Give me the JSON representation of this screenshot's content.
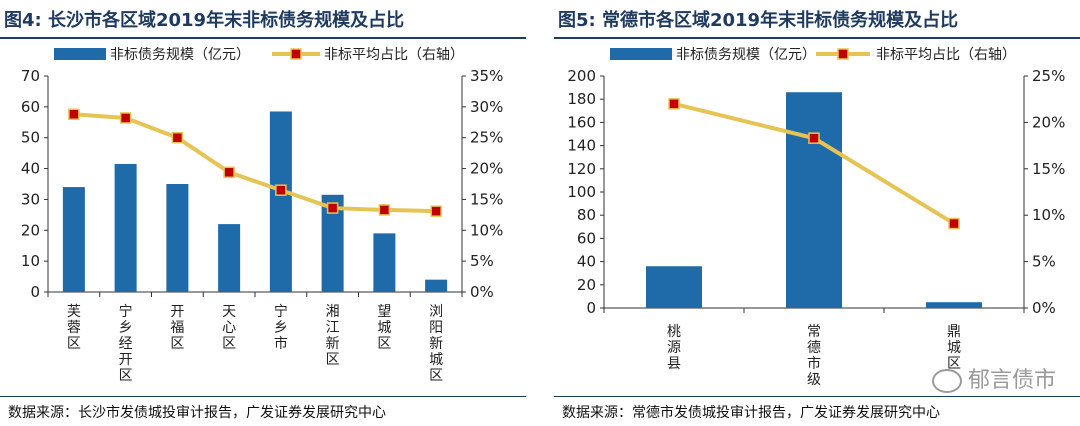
{
  "charts": [
    {
      "title": "图4: 长沙市各区域2019年末非标债务规模及占比",
      "source": "数据来源：长沙市发债城投审计报告，广发证券发展研究中心"
    },
    {
      "title": "图5: 常德市各区域2019年末非标债务规模及占比",
      "source": "数据来源：常德市发债城投审计报告，广发证券发展研究中心"
    }
  ],
  "watermark": "郁言债市",
  "colors": {
    "bar": "#1f6aa8",
    "line": "#e6c453",
    "marker": "#c00000",
    "header": "#1f3a5f"
  },
  "chart_data": [
    {
      "type": "bar+line",
      "categories": [
        "芙蓉区",
        "宁乡经开区",
        "开福区",
        "天心区",
        "宁乡市",
        "湘江新区",
        "望城区",
        "浏阳新城区"
      ],
      "series": [
        {
          "name": "非标债务规模（亿元）",
          "axis": "left",
          "type": "bar",
          "values": [
            34,
            41.5,
            35,
            22,
            58.5,
            31.5,
            19,
            4
          ]
        },
        {
          "name": "非标平均占比（右轴）",
          "axis": "right",
          "type": "line",
          "values": [
            0.288,
            0.282,
            0.25,
            0.194,
            0.165,
            0.136,
            0.133,
            0.131
          ]
        }
      ],
      "ylim_left": [
        0,
        70
      ],
      "yticks_left": [
        0,
        10,
        20,
        30,
        40,
        50,
        60,
        70
      ],
      "ylim_right": [
        0,
        0.35
      ],
      "yticks_right": [
        "0%",
        "5%",
        "10%",
        "15%",
        "20%",
        "25%",
        "30%",
        "35%"
      ]
    },
    {
      "type": "bar+line",
      "categories": [
        "桃源县",
        "常德市级",
        "鼎城区"
      ],
      "series": [
        {
          "name": "非标债务规模（亿元）",
          "axis": "left",
          "type": "bar",
          "values": [
            36,
            186,
            5
          ]
        },
        {
          "name": "非标平均占比（右轴）",
          "axis": "right",
          "type": "line",
          "values": [
            0.22,
            0.183,
            0.091
          ]
        }
      ],
      "ylim_left": [
        0,
        200
      ],
      "yticks_left": [
        0,
        20,
        40,
        60,
        80,
        100,
        120,
        140,
        160,
        180,
        200
      ],
      "ylim_right": [
        0,
        0.25
      ],
      "yticks_right": [
        "0%",
        "5%",
        "10%",
        "15%",
        "20%",
        "25%"
      ]
    }
  ]
}
